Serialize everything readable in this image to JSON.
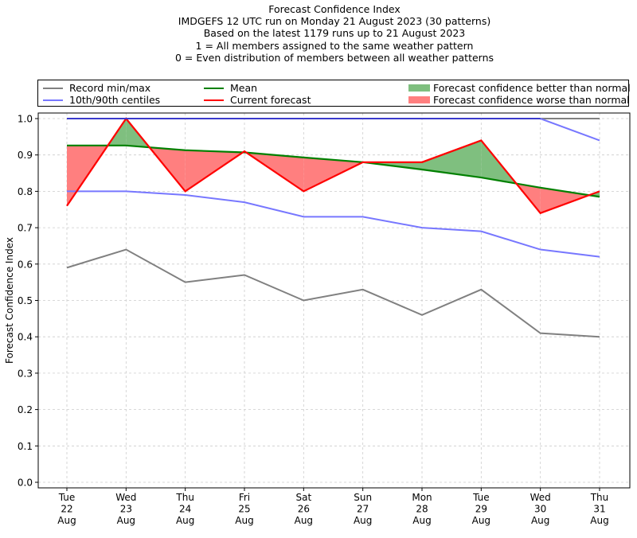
{
  "chart_data": {
    "type": "line",
    "title_lines": [
      "Forecast Confidence Index",
      "IMDGEFS 12 UTC run on Monday 21 August 2023 (30 patterns)",
      "Based on the latest 1179 runs up to 21 August 2023",
      "1 = All members assigned to the same weather pattern",
      "0 = Even distribution of members between all weather patterns"
    ],
    "xlabel": "",
    "ylabel": "Forecast Confidence Index",
    "ylim": [
      0.0,
      1.0
    ],
    "yticks": [
      "0.0",
      "0.1",
      "0.2",
      "0.3",
      "0.4",
      "0.5",
      "0.6",
      "0.7",
      "0.8",
      "0.9",
      "1.0"
    ],
    "grid": true,
    "legend_position": "top (above plot, 3 columns)",
    "categories": [
      {
        "dow": "Tue",
        "day": "22",
        "mon": "Aug"
      },
      {
        "dow": "Wed",
        "day": "23",
        "mon": "Aug"
      },
      {
        "dow": "Thu",
        "day": "24",
        "mon": "Aug"
      },
      {
        "dow": "Fri",
        "day": "25",
        "mon": "Aug"
      },
      {
        "dow": "Sat",
        "day": "26",
        "mon": "Aug"
      },
      {
        "dow": "Sun",
        "day": "27",
        "mon": "Aug"
      },
      {
        "dow": "Mon",
        "day": "28",
        "mon": "Aug"
      },
      {
        "dow": "Tue",
        "day": "29",
        "mon": "Aug"
      },
      {
        "dow": "Wed",
        "day": "30",
        "mon": "Aug"
      },
      {
        "dow": "Thu",
        "day": "31",
        "mon": "Aug"
      }
    ],
    "series": [
      {
        "name": "Record max",
        "legend": "Record min/max",
        "color": "#808080",
        "values": [
          1.0,
          1.0,
          1.0,
          1.0,
          1.0,
          1.0,
          1.0,
          1.0,
          1.0,
          1.0
        ]
      },
      {
        "name": "Record min",
        "legend": "Record min/max",
        "color": "#808080",
        "values": [
          0.59,
          0.64,
          0.55,
          0.57,
          0.5,
          0.53,
          0.46,
          0.53,
          0.41,
          0.4
        ]
      },
      {
        "name": "90th centile",
        "legend": "10th/90th centiles",
        "color": "#7777ff",
        "values": [
          1.0,
          1.0,
          1.0,
          1.0,
          1.0,
          1.0,
          1.0,
          1.0,
          1.0,
          0.94
        ]
      },
      {
        "name": "10th centile",
        "legend": "10th/90th centiles",
        "color": "#7777ff",
        "values": [
          0.8,
          0.8,
          0.79,
          0.77,
          0.73,
          0.73,
          0.7,
          0.69,
          0.64,
          0.62
        ]
      },
      {
        "name": "Mean",
        "legend": "Mean",
        "color": "#008000",
        "values": [
          0.926,
          0.926,
          0.913,
          0.907,
          0.893,
          0.88,
          0.86,
          0.838,
          0.81,
          0.785
        ]
      },
      {
        "name": "Current forecast",
        "legend": "Current forecast",
        "color": "#ff0000",
        "values": [
          0.76,
          1.0,
          0.8,
          0.91,
          0.8,
          0.88,
          0.88,
          0.94,
          0.74,
          0.8
        ]
      }
    ],
    "fills": {
      "better": {
        "label": "Forecast confidence better than normal",
        "color": "#7fbf7f"
      },
      "worse": {
        "label": "Forecast confidence worse than normal",
        "color": "#ff7f7f"
      }
    }
  },
  "legend": {
    "record": "Record min/max",
    "centiles": "10th/90th centiles",
    "mean": "Mean",
    "current": "Current forecast",
    "better": "Forecast confidence better than normal",
    "worse": "Forecast confidence worse than normal"
  }
}
